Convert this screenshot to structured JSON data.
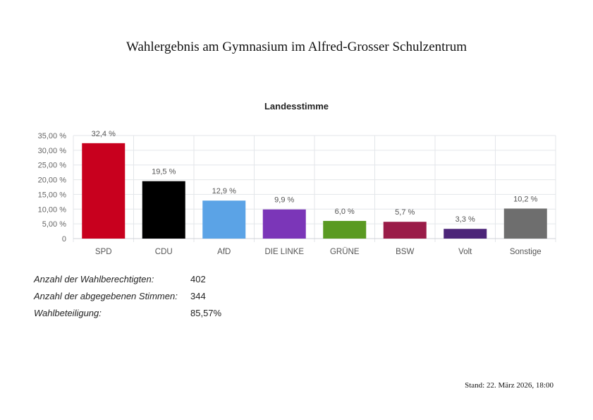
{
  "page": {
    "title": "Wahlergebnis am Gymnasium im Alfred-Grosser Schulzentrum",
    "footer": "Stand: 22. März 2026, 18:00"
  },
  "chart_data": {
    "type": "bar",
    "title": "Landesstimme",
    "categories": [
      "SPD",
      "CDU",
      "AfD",
      "DIE LINKE",
      "GRÜNE",
      "BSW",
      "Volt",
      "Sonstige"
    ],
    "values": [
      32.4,
      19.5,
      12.9,
      9.9,
      6.0,
      5.7,
      3.3,
      10.2
    ],
    "value_labels": [
      "32,4 %",
      "19,5 %",
      "12,9 %",
      "9,9 %",
      "6,0 %",
      "5,7 %",
      "3,3 %",
      "10,2 %"
    ],
    "colors": [
      "#c8001e",
      "#000000",
      "#5ba3e6",
      "#7b36b8",
      "#5a9a22",
      "#9a1c48",
      "#4b2478",
      "#6e6e6e"
    ],
    "y_ticks": [
      0,
      5,
      10,
      15,
      20,
      25,
      30,
      35
    ],
    "y_tick_labels": [
      "0",
      "5,00 %",
      "10,00 %",
      "15,00 %",
      "20,00 %",
      "25,00 %",
      "30,00 %",
      "35,00 %"
    ],
    "ylim": [
      0,
      35
    ],
    "grid": true,
    "xlabel": "",
    "ylabel": ""
  },
  "stats": [
    {
      "label": "Anzahl der Wahlberechtigten:",
      "value": "402"
    },
    {
      "label": "Anzahl der abgegebenen Stimmen:",
      "value": "344"
    },
    {
      "label": "Wahlbeteiligung:",
      "value": "85,57%"
    }
  ]
}
